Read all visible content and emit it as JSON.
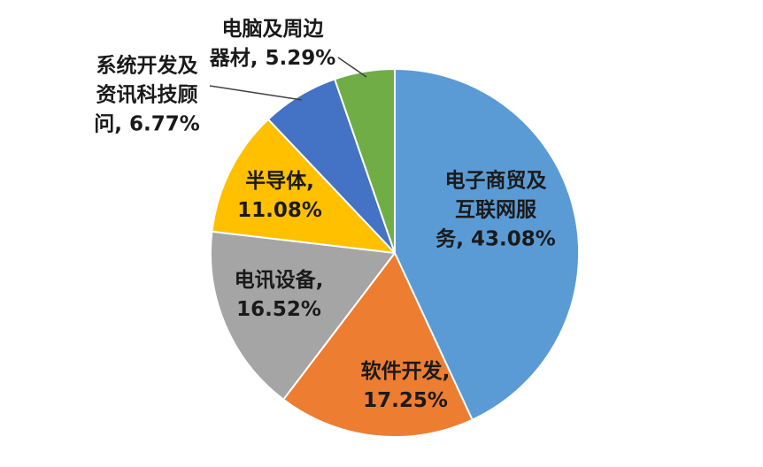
{
  "page": {
    "background_color": "#ffffff",
    "title": ""
  },
  "chart_data": {
    "type": "pie",
    "title": "",
    "direction": "clockwise",
    "start_angle_deg": 0,
    "legend_position": "none",
    "grid": false,
    "slice_border_color": "#ffffff",
    "label_text_color": "#1a1a1a",
    "leader_line_color": "#404040",
    "categories": [
      "电子商贸及互联网服务",
      "软件开发",
      "电讯设备",
      "半导体",
      "系统开发及资讯科技顾问",
      "电脑及周边器材"
    ],
    "values": [
      43.08,
      17.25,
      16.52,
      11.08,
      6.77,
      5.29
    ],
    "slices": [
      {
        "label": "电子商贸及互联网服务",
        "value": 43.08,
        "percent_text": "43.08%",
        "display_lines": [
          "电子商贸及",
          "互联网服",
          "务, 43.08%"
        ],
        "color": "#5B9BD5",
        "label_placement": "inside"
      },
      {
        "label": "软件开发",
        "value": 17.25,
        "percent_text": "17.25%",
        "display_lines": [
          "软件开发,",
          "17.25%"
        ],
        "color": "#ED7D31",
        "label_placement": "inside"
      },
      {
        "label": "电讯设备",
        "value": 16.52,
        "percent_text": "16.52%",
        "display_lines": [
          "电讯设备,",
          "16.52%"
        ],
        "color": "#A5A5A5",
        "label_placement": "inside"
      },
      {
        "label": "半导体",
        "value": 11.08,
        "percent_text": "11.08%",
        "display_lines": [
          "半导体,",
          "11.08%"
        ],
        "color": "#FFC000",
        "label_placement": "inside"
      },
      {
        "label": "系统开发及资讯科技顾问",
        "value": 6.77,
        "percent_text": "6.77%",
        "display_lines": [
          "系统开发及",
          "资讯科技顾",
          "问, 6.77%"
        ],
        "color": "#4472C4",
        "label_placement": "outside"
      },
      {
        "label": "电脑及周边器材",
        "value": 5.29,
        "percent_text": "5.29%",
        "display_lines": [
          "电脑及周边",
          "器材, 5.29%"
        ],
        "color": "#70AD47",
        "label_placement": "outside"
      }
    ]
  }
}
